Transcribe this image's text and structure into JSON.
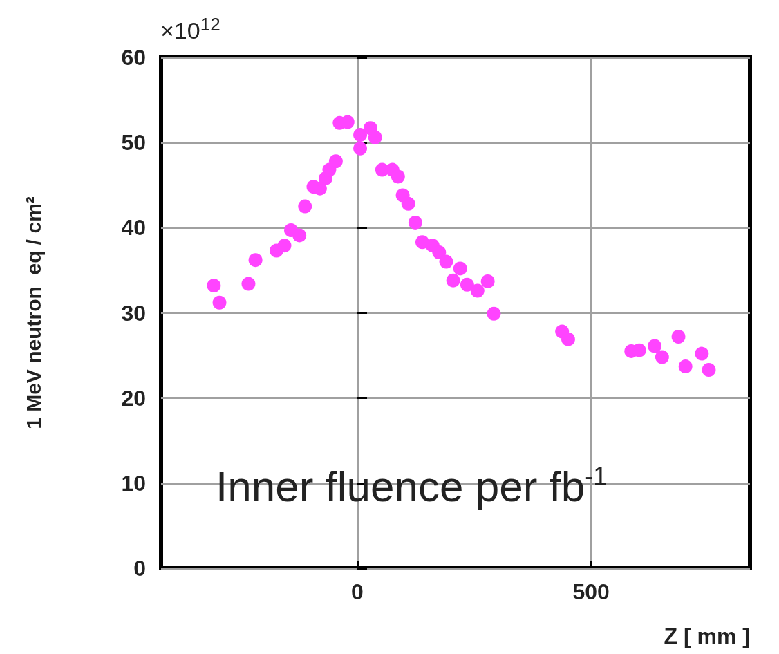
{
  "chart_data": {
    "type": "scatter",
    "xlabel": "Z [ mm ]",
    "ylabel": "1 MeV neutron  eq / cm²",
    "annotations": [
      "×10$^{12}$",
      "Inner fluence per fb$^{-1}$"
    ],
    "x": [
      -307,
      -295,
      -233,
      -218,
      -173,
      -156,
      -142,
      -124,
      -112,
      -94,
      -80,
      -68,
      -60,
      -46,
      -38,
      -21,
      6,
      6,
      28,
      38,
      53,
      75,
      87,
      97,
      109,
      124,
      139,
      161,
      175,
      190,
      205,
      220,
      235,
      257,
      279,
      292,
      438,
      451,
      586,
      603,
      636,
      652,
      687,
      702,
      737,
      752
    ],
    "series": [
      {
        "color": "#ff44ff",
        "values": [
          33.2,
          31.2,
          33.4,
          36.2,
          37.3,
          37.9,
          39.7,
          39.1,
          42.5,
          44.8,
          44.6,
          45.8,
          46.8,
          47.8,
          52.3,
          52.4,
          50.9,
          49.3,
          51.7,
          50.6,
          46.8,
          46.8,
          46.0,
          43.8,
          42.8,
          40.6,
          38.3,
          37.9,
          37.1,
          36.0,
          33.8,
          35.2,
          33.3,
          32.6,
          33.7,
          29.9,
          27.8,
          26.9,
          25.5,
          25.6,
          26.1,
          24.8,
          27.2,
          23.7,
          25.2,
          23.3
        ]
      }
    ],
    "xlim": [
      -420,
      840
    ],
    "xticks": [
      0,
      500
    ],
    "ylim": [
      0,
      60
    ],
    "yticks": [
      0,
      10,
      20,
      30,
      40,
      50,
      60
    ],
    "grid": true,
    "marker": "circle"
  }
}
